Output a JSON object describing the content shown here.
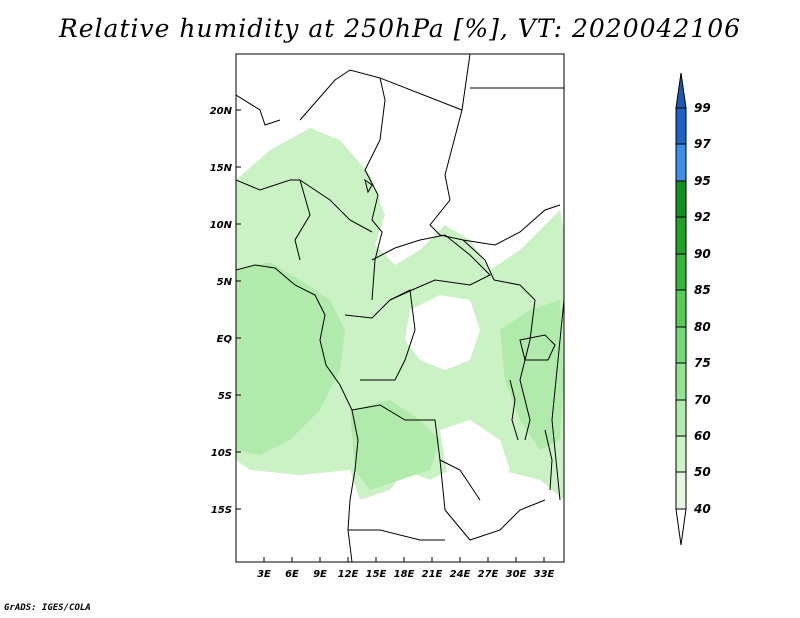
{
  "title": "Relative humidity at 250hPa [%], VT: 2020042106",
  "credit": "GrADS: IGES/COLA",
  "map": {
    "lat_ticks": [
      "20N",
      "15N",
      "10N",
      "5N",
      "EQ",
      "5S",
      "10S",
      "15S"
    ],
    "lon_ticks": [
      "3E",
      "6E",
      "9E",
      "12E",
      "15E",
      "18E",
      "21E",
      "24E",
      "27E",
      "30E",
      "33E"
    ],
    "lat_range": [
      -20,
      25
    ],
    "lon_range": [
      0,
      35
    ]
  },
  "colorbar": {
    "labels": [
      "99",
      "97",
      "95",
      "92",
      "90",
      "85",
      "80",
      "75",
      "70",
      "60",
      "50",
      "40"
    ],
    "colors": {
      "95_97": "#3d8ee8",
      "97_99": "#1f62c8",
      "above_99": "#1a5bb8",
      "92_95": "#15901c",
      "90_92": "#1fa12a",
      "85_90": "#35b53c",
      "80_85": "#55cd55",
      "75_80": "#75d975",
      "70_75": "#93e290",
      "60_70": "#b0ebab",
      "50_60": "#caf2c4",
      "40_50": "#e3f8de",
      "below_40": "#ffffff"
    }
  }
}
